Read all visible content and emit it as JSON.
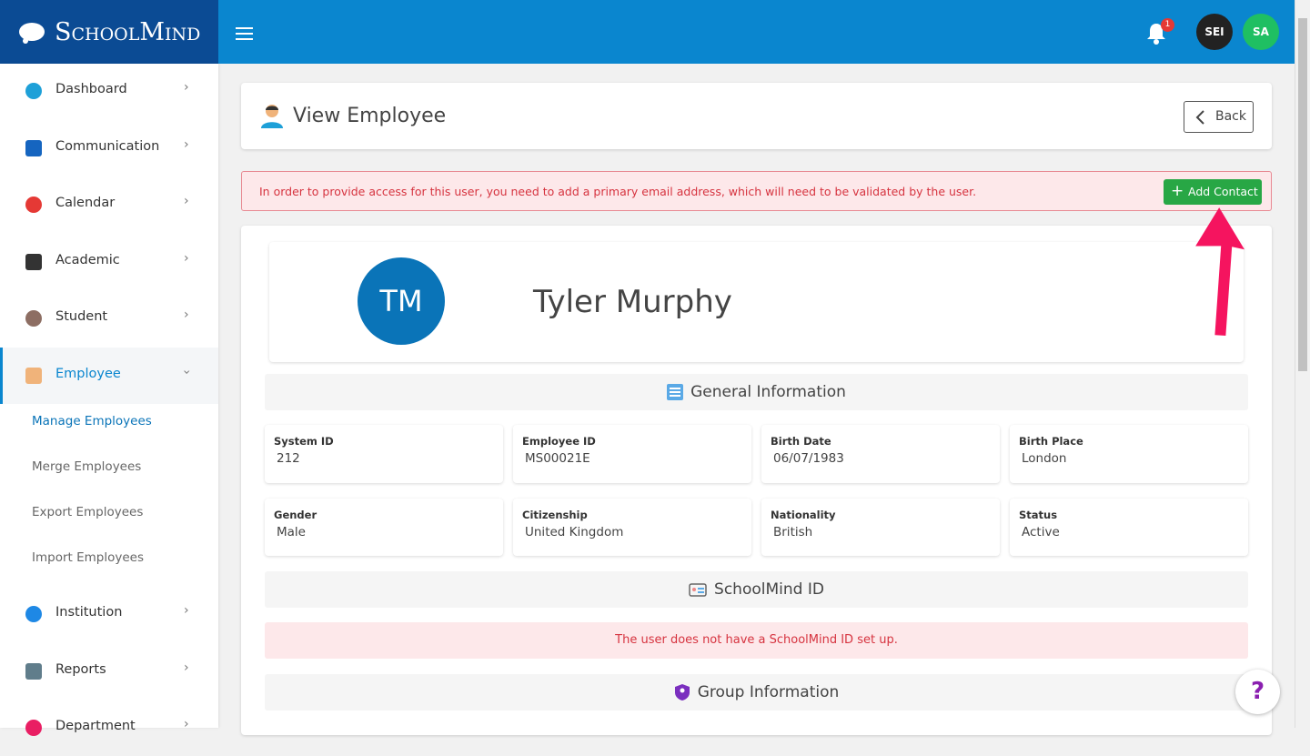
{
  "header": {
    "logo": "SchoolMind",
    "notification_count": 1,
    "avatars": [
      "SEI",
      "SA"
    ]
  },
  "sidebar": {
    "items": [
      "Dashboard",
      "Communication",
      "Calendar",
      "Academic",
      "Student",
      "Employee"
    ],
    "submenu": [
      "Manage Employees",
      "Merge Employees",
      "Export Employees",
      "Import Employees"
    ],
    "items_after": [
      "Institution",
      "Reports",
      "Department"
    ]
  },
  "page": {
    "title": "View Employee",
    "back": "Back"
  },
  "alert": {
    "message": "In order to provide access for this user, you need to add a primary email address, which will need to be validated by the user.",
    "action": "Add Contact"
  },
  "profile": {
    "initials": "TM",
    "name": "Tyler Murphy"
  },
  "general": {
    "title": "General Information",
    "fields": [
      {
        "label": "System ID",
        "value": "212"
      },
      {
        "label": "Employee ID",
        "value": "MS00021E"
      },
      {
        "label": "Birth Date",
        "value": "06/07/1983"
      },
      {
        "label": "Birth Place",
        "value": "London"
      },
      {
        "label": "Gender",
        "value": "Male"
      },
      {
        "label": "Citizenship",
        "value": "United Kingdom"
      },
      {
        "label": "Nationality",
        "value": "British"
      },
      {
        "label": "Status",
        "value": "Active"
      }
    ]
  },
  "schoolmind_id": {
    "title": "SchoolMind ID",
    "message": "The user does not have a SchoolMind ID set up."
  },
  "group": {
    "title": "Group Information"
  },
  "help": "?"
}
